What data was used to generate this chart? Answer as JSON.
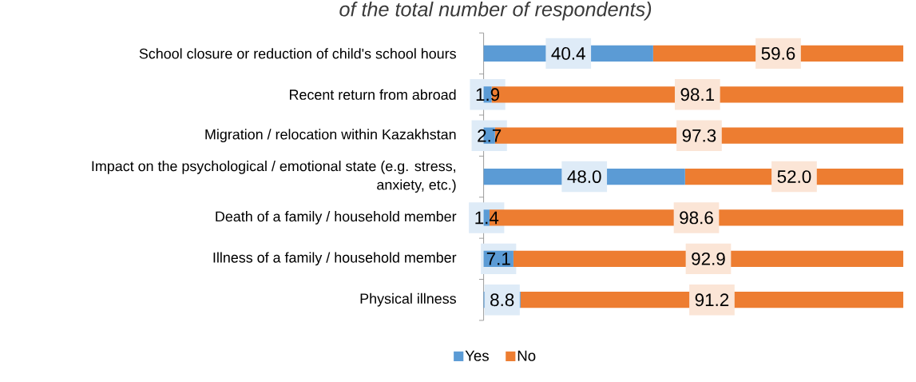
{
  "chart_data": {
    "type": "bar",
    "orientation": "horizontal",
    "stacked": true,
    "title": "of the total number of respondents)",
    "categories": [
      "School closure or reduction of child's school hours",
      "Recent return from abroad",
      "Migration / relocation within Kazakhstan",
      "Impact on the psychological / emotional state (e.g. stress, anxiety, etc.)",
      "Death of a family / household member",
      "Illness of a family / household member",
      "Physical illness"
    ],
    "series": [
      {
        "name": "Yes",
        "color": "#5b9bd5",
        "values": [
          40.4,
          1.9,
          2.7,
          48.0,
          1.4,
          7.1,
          8.8
        ],
        "value_labels": [
          "40.4",
          "1.9",
          "2.7",
          "48.0",
          "1.4",
          "7.1",
          "8.8"
        ]
      },
      {
        "name": "No",
        "color": "#ed7d31",
        "values": [
          59.6,
          98.1,
          97.3,
          52.0,
          98.6,
          92.9,
          91.2
        ],
        "value_labels": [
          "59.6",
          "98.1",
          "97.3",
          "52.0",
          "98.6",
          "92.9",
          "91.2"
        ]
      }
    ],
    "xlim": [
      0,
      100
    ],
    "tick_labels": "y",
    "legend": "bottom"
  }
}
